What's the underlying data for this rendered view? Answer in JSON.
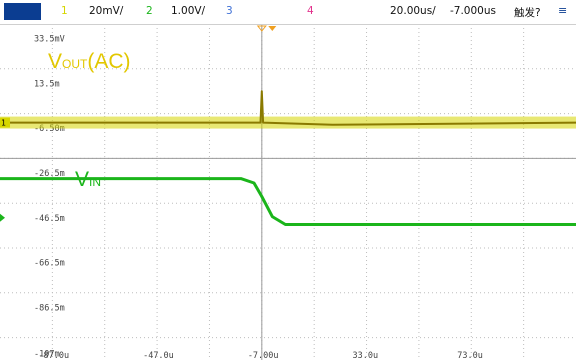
{
  "toolbar": {
    "ch1_number": "1",
    "ch1_scale": "20mV/",
    "ch2_number": "2",
    "ch2_scale": "1.00V/",
    "ch3_number": "3",
    "ch4_number": "4",
    "timebase": "20.00us/",
    "delay": "-7.000us",
    "trigger_label": "触发?"
  },
  "annotations": {
    "vout_main": "V",
    "vout_sub": "OUT",
    "vout_suffix": "(AC)",
    "vin_main": "V",
    "vin_sub": "IN"
  },
  "colors": {
    "ch1": "#d6d600",
    "ch2": "#1bb51b",
    "ch3": "#3d6fd6",
    "ch4": "#e2318c",
    "grid": "#bdbdbd",
    "trigger_marker": "#f0a020"
  },
  "chart_data": {
    "type": "line",
    "ylabels": [
      "33.5mV",
      "13.5m",
      "-6.50m",
      "-26.5m",
      "-46.5m",
      "-66.5m",
      "-86.5m",
      "-107m"
    ],
    "xlabels": [
      "-87.0u",
      "-47.0u",
      "-7.00u",
      "33.0u",
      "73.0u"
    ],
    "series": [
      {
        "channel": "1",
        "coupling": "AC",
        "x_us": [
          -107,
          -7.5,
          -7,
          -6.5,
          20,
          113
        ],
        "y_mV": [
          -4,
          -4,
          10,
          -4,
          -5,
          -4
        ]
      },
      {
        "channel": "2",
        "x_us": [
          -107,
          -15,
          -10,
          -7,
          -3,
          2,
          113
        ],
        "y_mV": [
          -29,
          -29,
          -31,
          -37,
          -46,
          -49.5,
          -49.5
        ]
      }
    ]
  }
}
